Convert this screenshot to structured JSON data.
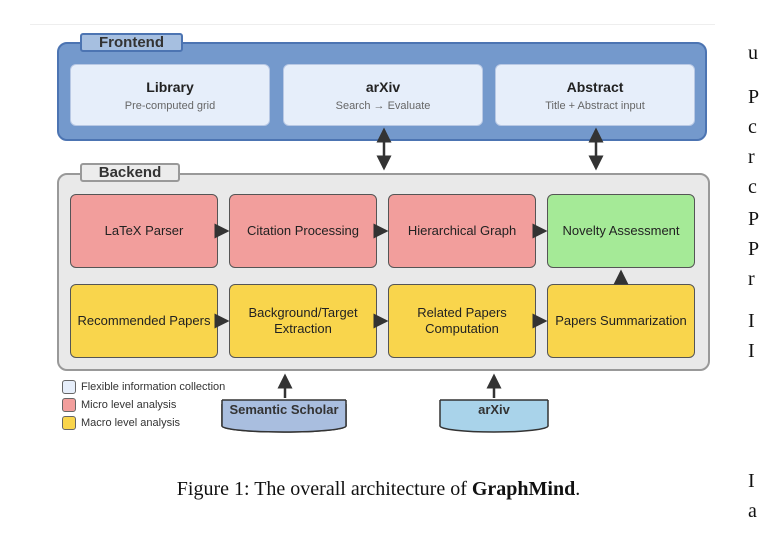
{
  "frontend": {
    "label": "Frontend",
    "boxes": [
      {
        "title": "Library",
        "subtitle": "Pre-computed grid"
      },
      {
        "title": "arXiv",
        "subtitle": "Search → Evaluate"
      },
      {
        "title": "Abstract",
        "subtitle": "Title + Abstract input"
      }
    ]
  },
  "backend": {
    "label": "Backend",
    "row1": [
      "LaTeX Parser",
      "Citation Processing",
      "Hierarchical Graph",
      "Novelty Assessment"
    ],
    "row2": [
      "Recommended Papers",
      "Background/Target Extraction",
      "Related Papers Computation",
      "Papers Summarization"
    ]
  },
  "sources": [
    "Semantic Scholar",
    "arXiv"
  ],
  "legend": [
    {
      "label": "Flexible information collection",
      "color": "#e6eefa"
    },
    {
      "label": "Micro level analysis",
      "color": "#f29e9c"
    },
    {
      "label": "Macro level analysis",
      "color": "#f9d54c"
    }
  ],
  "colors": {
    "frontend": "#7499cc",
    "micro": "#f29e9c",
    "macro": "#f9d54c",
    "novelty": "#a5ea97",
    "database": "#a9bedf"
  },
  "caption": {
    "prefix": "Figure 1: The overall architecture of ",
    "bold": "GraphMind",
    "suffix": "."
  },
  "side_text": [
    "u",
    "P",
    "c",
    "r",
    "c",
    "P",
    "P",
    "r",
    "I",
    "I",
    "I",
    "a"
  ]
}
